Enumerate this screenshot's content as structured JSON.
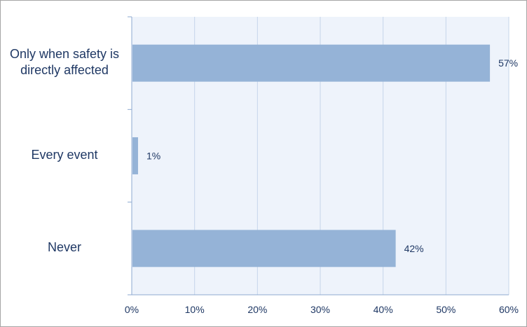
{
  "chart_data": {
    "type": "bar",
    "orientation": "horizontal",
    "title": "",
    "xlabel": "",
    "ylabel": "",
    "categories": [
      [
        "Only when safety is",
        "directly affected"
      ],
      [
        "Every event"
      ],
      [
        "Never"
      ]
    ],
    "values": [
      57,
      1,
      42
    ],
    "data_labels": [
      "57%",
      "1%",
      "42%"
    ],
    "xlim": [
      0,
      60
    ],
    "ticks": [
      0,
      10,
      20,
      30,
      40,
      50,
      60
    ],
    "tick_labels": [
      "0%",
      "10%",
      "20%",
      "30%",
      "40%",
      "50%",
      "60%"
    ],
    "grid": true,
    "legend": "none",
    "colors": {
      "bar": "#95b3d7",
      "plot_bg": "#eef3fb",
      "grid": "#c5d5ea",
      "axis": "#8eaad0",
      "text": "#1f3864"
    }
  }
}
